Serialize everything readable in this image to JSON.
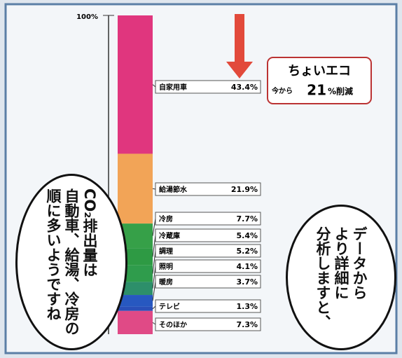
{
  "chart_data": {
    "type": "stacked-column",
    "categories": [
      "自家用車",
      "給湯節水",
      "冷房",
      "冷蔵庫",
      "調理",
      "照明",
      "暖房",
      "テレビ",
      "そのほか"
    ],
    "values": [
      43.4,
      21.9,
      7.7,
      5.4,
      5.2,
      4.1,
      3.7,
      1.3,
      7.3
    ],
    "value_labels": [
      "43.4%",
      "21.9%",
      "7.7%",
      "5.4%",
      "5.2%",
      "4.1%",
      "3.7%",
      "1.3%",
      "7.3%"
    ],
    "colors": [
      "#e0367e",
      "#f2a457",
      "#36a048",
      "#2e9a44",
      "#2f9c4c",
      "#2d8f6a",
      "#2758c0",
      "#2a4fb8",
      "#e04a86"
    ],
    "ylim": [
      0,
      100
    ],
    "yticks": [
      {
        "value": 100,
        "label": "100%"
      }
    ],
    "callout": {
      "title": "ちょいエコ",
      "prefix": "今から",
      "amount": 21,
      "suffix": "%削減"
    },
    "bubbles": [
      {
        "lines": [
          "CO₂排出量は",
          "自動車、給湯、冷房の",
          "順に多いようですね"
        ]
      },
      {
        "lines": [
          "データから",
          "より詳細に",
          "分析しますと、"
        ]
      }
    ]
  }
}
